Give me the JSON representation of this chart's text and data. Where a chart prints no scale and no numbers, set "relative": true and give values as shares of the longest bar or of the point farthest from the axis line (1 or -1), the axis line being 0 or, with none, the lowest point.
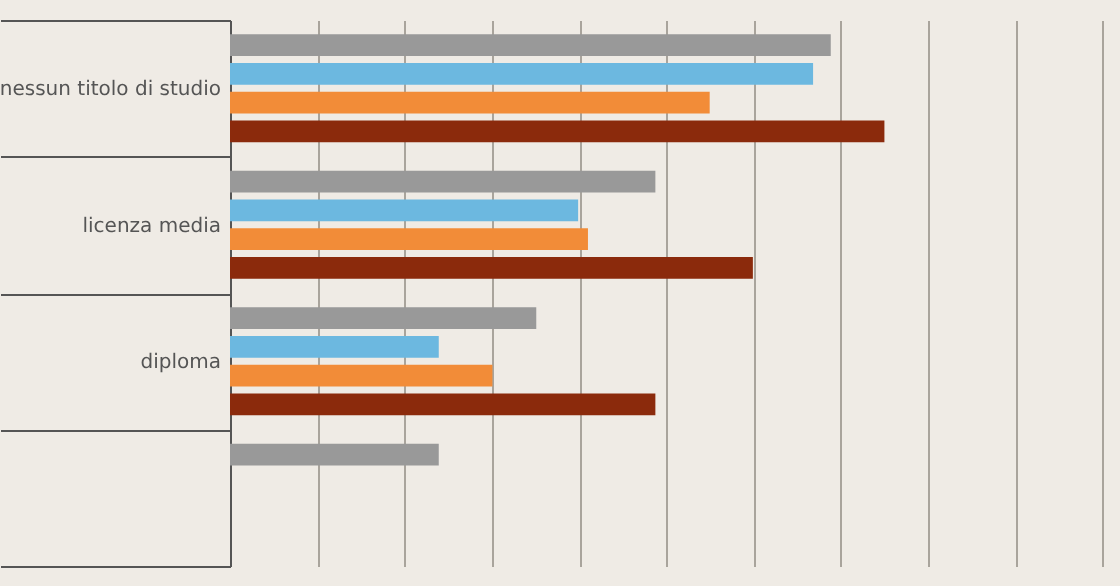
{
  "chart_data": {
    "type": "bar",
    "orientation": "horizontal",
    "relative": true,
    "grid": "x",
    "categories": [
      "nessun titolo di studio",
      "licenza media",
      "diploma",
      null
    ],
    "series": [
      {
        "color": "#999999",
        "values": [
          0.918,
          0.65,
          0.468,
          0.319
        ]
      },
      {
        "color": "#6cb8e0",
        "values": [
          0.891,
          0.532,
          0.319,
          null
        ]
      },
      {
        "color": "#f28c38",
        "values": [
          0.733,
          0.547,
          0.401,
          null
        ]
      },
      {
        "color": "#8b2a0c",
        "values": [
          1,
          0.799,
          0.65,
          null
        ]
      }
    ]
  }
}
